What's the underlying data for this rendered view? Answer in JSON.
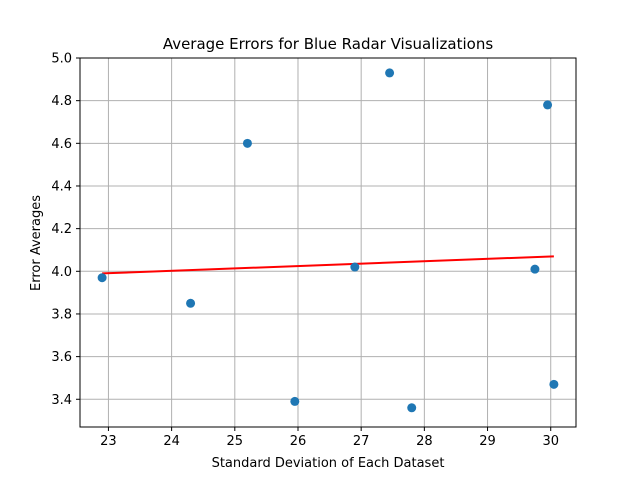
{
  "chart_data": {
    "type": "scatter",
    "title": "Average Errors for Blue Radar Visualizations",
    "xlabel": "Standard Deviation of Each Dataset",
    "ylabel": "Error Averages",
    "xlim": [
      22.55,
      30.4
    ],
    "ylim": [
      3.27,
      5.0
    ],
    "xticks": [
      23,
      24,
      25,
      26,
      27,
      28,
      29,
      30
    ],
    "yticks": [
      3.4,
      3.6,
      3.8,
      4.0,
      4.2,
      4.4,
      4.6,
      4.8,
      5.0
    ],
    "xtick_labels": [
      "23",
      "24",
      "25",
      "26",
      "27",
      "28",
      "29",
      "30"
    ],
    "ytick_labels": [
      "3.4",
      "3.6",
      "3.8",
      "4.0",
      "4.2",
      "4.4",
      "4.6",
      "4.8",
      "5.0"
    ],
    "grid": true,
    "points": [
      {
        "x": 22.9,
        "y": 3.97
      },
      {
        "x": 24.3,
        "y": 3.85
      },
      {
        "x": 25.2,
        "y": 4.6
      },
      {
        "x": 25.95,
        "y": 3.39
      },
      {
        "x": 26.9,
        "y": 4.02
      },
      {
        "x": 27.45,
        "y": 4.93
      },
      {
        "x": 27.8,
        "y": 3.36
      },
      {
        "x": 29.75,
        "y": 4.01
      },
      {
        "x": 29.95,
        "y": 4.78
      },
      {
        "x": 30.05,
        "y": 3.47
      }
    ],
    "trendline": {
      "x": [
        22.9,
        30.05
      ],
      "y": [
        3.99,
        4.07
      ]
    },
    "colors": {
      "points": "#1f77b4",
      "trendline": "#ff0000",
      "grid": "#b0b0b0",
      "axes": "#000000"
    }
  }
}
